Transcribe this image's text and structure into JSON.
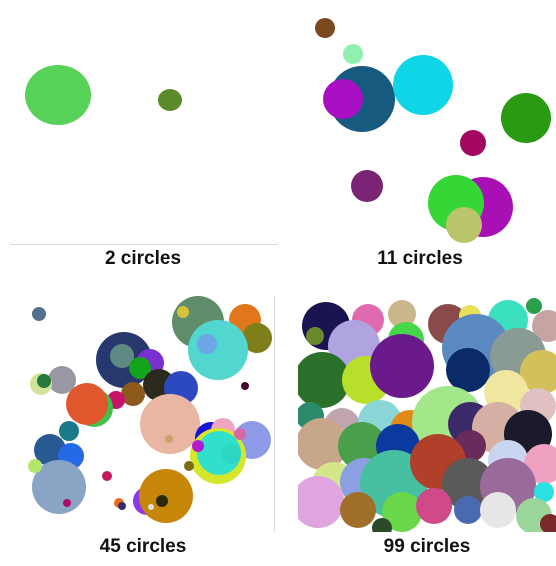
{
  "panels": [
    {
      "caption": "2 circles",
      "circles": [
        {
          "color": "#57d157"
        },
        {
          "color": "#5b8a2a"
        }
      ]
    },
    {
      "caption": "11 circles",
      "circles": [
        {
          "color": "#7a4a1e"
        },
        {
          "color": "#8ff0b0"
        },
        {
          "color": "#175a80"
        },
        {
          "color": "#a910c4"
        },
        {
          "color": "#0fd6e6"
        },
        {
          "color": "#2a9a12"
        },
        {
          "color": "#a3075e"
        },
        {
          "color": "#7b2476"
        },
        {
          "color": "#a810b5"
        },
        {
          "color": "#36d636"
        },
        {
          "color": "#b9c46b"
        }
      ]
    },
    {
      "caption": "45 circles",
      "circles": [
        {
          "color": "#53708c"
        },
        {
          "color": "#5f8c6a"
        },
        {
          "color": "#d4c23a"
        },
        {
          "color": "#e0771c"
        },
        {
          "color": "#7e7e1a"
        },
        {
          "color": "#52d6d0"
        },
        {
          "color": "#6ca6e6"
        },
        {
          "color": "#27386f"
        },
        {
          "color": "#5f8a84"
        },
        {
          "color": "#7a2fd0"
        },
        {
          "color": "#12a51b"
        },
        {
          "color": "#420a2a"
        },
        {
          "color": "#2a2a1e"
        },
        {
          "color": "#2d49c0"
        },
        {
          "color": "#8c5a1a"
        },
        {
          "color": "#c71469"
        },
        {
          "color": "#9a98a4"
        },
        {
          "color": "#cfe39a"
        },
        {
          "color": "#247a3a"
        },
        {
          "color": "#3fc04a"
        },
        {
          "color": "#e0572e"
        },
        {
          "color": "#1a7a8a"
        },
        {
          "color": "#e9b6a4"
        },
        {
          "color": "#c9a36a"
        },
        {
          "color": "#1515d6"
        },
        {
          "color": "#f0a4c0"
        },
        {
          "color": "#8e9ae6"
        },
        {
          "color": "#d6e62a"
        },
        {
          "color": "#30e0cc"
        },
        {
          "color": "#2a5a94"
        },
        {
          "color": "#246ae6"
        },
        {
          "color": "#8aa4c6"
        },
        {
          "color": "#b4e66a"
        },
        {
          "color": "#c01a5a"
        },
        {
          "color": "#e96f1a"
        },
        {
          "color": "#8a3ae6"
        },
        {
          "color": "#c6860a"
        },
        {
          "color": "#2a2a0a"
        },
        {
          "color": "#ad0a6a"
        },
        {
          "color": "#7a6b10"
        },
        {
          "color": "#b31acf"
        },
        {
          "color": "#2bd6c2"
        },
        {
          "color": "#d66aa4"
        },
        {
          "color": "#3a2c6a"
        },
        {
          "color": "#e0e0e0"
        }
      ]
    },
    {
      "caption": "99 circles",
      "circles": []
    }
  ],
  "panel4_palette": [
    "#1a1450",
    "#e06ab0",
    "#c9b68a",
    "#8a4a4a",
    "#e6e05a",
    "#3ae0c0",
    "#2aa04a",
    "#c6a4a4",
    "#6a8a2a",
    "#b0a4e0",
    "#46d64a",
    "#5a8ac0",
    "#8a9a94",
    "#d4c05a",
    "#2a702a",
    "#b8e02a",
    "#6a1a8a",
    "#0a2a6a",
    "#f0e6a0",
    "#e0c0c0",
    "#2a8a6a",
    "#c0a4b0",
    "#8ad6d6",
    "#e08a1a",
    "#a4e68a",
    "#3a2a6a",
    "#d6b0a4",
    "#1a1a2a",
    "#c8a68a",
    "#4aa04a",
    "#0a3aa0",
    "#6a2a5a",
    "#c8d4f0",
    "#f0a0c0",
    "#d4e68a",
    "#8aa0e0",
    "#46c0a0",
    "#b0402a",
    "#5a5a5a",
    "#9a6a9a",
    "#2ae0e0",
    "#e0a4e0",
    "#a0702a",
    "#6ad64a",
    "#d04a8a",
    "#4a6ab0",
    "#e6e6e6",
    "#9ad69a",
    "#7a2a2a",
    "#2a4a2a"
  ]
}
